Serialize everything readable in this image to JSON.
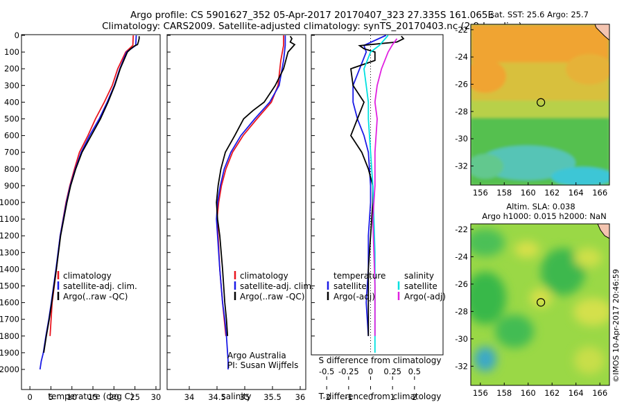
{
  "header": {
    "title_line1": "Argo profile: CS 5901627_352 05-Apr-2017 20170407_323 27.335S 161.065E",
    "title_line2": "Climatology: CARS2009. Satellite-adjusted climatology: synTS_20170403.nc (2.9d earlier)"
  },
  "side_text": "©IMOS 10-Apr-2017 20:46:59",
  "colors": {
    "climatology": "#e8141e",
    "satellite": "#1a1ae6",
    "argo": "#000000",
    "sat_salinity": "#00e0e0",
    "argo_salinity": "#e020e0"
  },
  "depth_ticks": [
    0,
    100,
    200,
    300,
    400,
    500,
    600,
    700,
    800,
    900,
    1000,
    1100,
    1200,
    1300,
    1400,
    1500,
    1600,
    1700,
    1800,
    1900,
    2000
  ],
  "chart_data": [
    {
      "type": "line",
      "xlabel": "temperature (deg C)",
      "xticks": [
        0,
        5,
        10,
        15,
        20,
        25,
        30
      ],
      "xlim": [
        -2,
        31
      ],
      "ylim": [
        0,
        2000
      ],
      "legend": [
        "climatology",
        "satellite-adj. clim.",
        "Argo(..raw -QC)"
      ],
      "series": [
        {
          "name": "climatology",
          "color": "#e8141e",
          "x": [
            24.6,
            24.5,
            22.8,
            20.9,
            19.6,
            17.7,
            15.6,
            13.8,
            11.8,
            10.6,
            9.5,
            8.6,
            7.2,
            6.3,
            5.3,
            4.8
          ],
          "y": [
            0,
            60,
            100,
            200,
            300,
            400,
            500,
            600,
            700,
            800,
            900,
            1000,
            1200,
            1400,
            1600,
            1800
          ]
        },
        {
          "name": "satellite-adj. clim.",
          "color": "#1a1ae6",
          "x": [
            25.3,
            25.2,
            23,
            21.4,
            20.1,
            18.4,
            16.5,
            14.2,
            12.2,
            10.8,
            9.6,
            8.7,
            7.2,
            6.2,
            5.1,
            4.5,
            3.8,
            3.2,
            2.7,
            2.4
          ],
          "y": [
            0,
            60,
            100,
            200,
            300,
            400,
            500,
            600,
            700,
            800,
            900,
            1000,
            1200,
            1400,
            1600,
            1700,
            1800,
            1900,
            1950,
            2000
          ]
        },
        {
          "name": "Argo(..raw -QC)",
          "color": "#000000",
          "x": [
            26,
            26,
            25.8,
            25.6,
            25,
            24,
            23.2,
            21.5,
            20.2,
            18.6,
            16.8,
            14.6,
            12.4,
            10.9,
            9.7,
            8.8,
            7.3,
            6.3,
            5.2,
            4.6,
            3.9,
            3.3
          ],
          "y": [
            5,
            20,
            40,
            55,
            62,
            80,
            100,
            200,
            300,
            400,
            500,
            600,
            700,
            800,
            900,
            1000,
            1200,
            1400,
            1600,
            1700,
            1800,
            1900
          ]
        }
      ]
    },
    {
      "type": "line",
      "xlabel": "salinity",
      "xticks": [
        34,
        34.5,
        35,
        35.5,
        36
      ],
      "xlim": [
        33.6,
        36.1
      ],
      "ylim": [
        0,
        2000
      ],
      "legend": [
        "climatology",
        "satellite-adj. clim.",
        "Argo(..raw -QC)"
      ],
      "annotation": [
        "Argo Australia",
        "PI: Susan Wijffels"
      ],
      "series": [
        {
          "name": "climatology",
          "color": "#e8141e",
          "x": [
            35.7,
            35.7,
            35.65,
            35.6,
            35.48,
            35.22,
            34.97,
            34.78,
            34.66,
            34.58,
            34.53,
            34.5,
            34.52,
            34.55,
            34.6,
            34.63,
            34.66
          ],
          "y": [
            0,
            60,
            150,
            300,
            400,
            500,
            600,
            700,
            800,
            900,
            1000,
            1100,
            1200,
            1400,
            1600,
            1700,
            1800
          ]
        },
        {
          "name": "satellite-adj. clim.",
          "color": "#1a1ae6",
          "x": [
            35.73,
            35.73,
            35.7,
            35.62,
            35.45,
            35.18,
            34.93,
            34.75,
            34.63,
            34.56,
            34.51,
            34.49,
            34.51,
            34.55,
            34.6,
            34.64,
            34.67,
            34.69,
            34.7,
            34.7
          ],
          "y": [
            0,
            60,
            150,
            300,
            400,
            500,
            600,
            700,
            800,
            900,
            1000,
            1100,
            1200,
            1400,
            1600,
            1700,
            1800,
            1900,
            1950,
            2000
          ]
        },
        {
          "name": "Argo(..raw -QC)",
          "color": "#000000",
          "x": [
            35.82,
            35.85,
            35.82,
            35.9,
            35.86,
            35.78,
            35.7,
            35.55,
            35.35,
            35.15,
            34.98,
            34.82,
            34.65,
            34.57,
            34.52,
            34.49,
            34.51,
            34.55,
            34.6,
            34.64,
            34.67,
            34.69
          ],
          "y": [
            5,
            20,
            40,
            55,
            70,
            100,
            200,
            300,
            400,
            450,
            500,
            600,
            700,
            800,
            900,
            1000,
            1100,
            1200,
            1400,
            1600,
            1700,
            1800
          ]
        }
      ]
    },
    {
      "type": "line",
      "xlabel": "T difference from climatology",
      "xticks": [
        -2,
        -1,
        0,
        1,
        2
      ],
      "xlim": [
        -2.7,
        3.3
      ],
      "ylim": [
        0,
        2000
      ],
      "top_label": "S difference from climatology",
      "top_ticks": [
        {
          "label": "-0.5",
          "t": -2
        },
        {
          "label": "-0.25",
          "t": -1
        },
        {
          "label": "0",
          "t": 0
        },
        {
          "label": "0.25",
          "t": 1
        },
        {
          "label": "0.5",
          "t": 2
        }
      ],
      "legend_temperature": {
        "heading": "temperature",
        "items": [
          "satellite",
          "Argo(-adj)"
        ]
      },
      "legend_salinity": {
        "heading": "salinity",
        "items": [
          "satellite",
          "Argo(-adj)"
        ]
      },
      "series": [
        {
          "name": "temperature satellite",
          "color": "#1a1ae6",
          "x": [
            0.7,
            -0.3,
            -0.2,
            -0.5,
            -0.8,
            -0.8,
            -0.6,
            -0.3,
            -0.1,
            -0.05,
            0,
            0,
            -0.1,
            -0.1,
            -0.2,
            -0.1
          ],
          "y": [
            0,
            60,
            100,
            200,
            300,
            400,
            500,
            600,
            700,
            800,
            900,
            1000,
            1200,
            1400,
            1600,
            1800
          ]
        },
        {
          "name": "temperature Argo(-adj)",
          "color": "#000000",
          "x": [
            1.4,
            1.5,
            1.2,
            0,
            -0.5,
            -0.3,
            0.2,
            0.2,
            -0.9,
            -0.8,
            -0.3,
            -0.6,
            -0.9,
            -0.4,
            -0.1,
            0.1,
            0.1,
            0,
            -0.1,
            -0.1,
            -0.1,
            -0.1
          ],
          "y": [
            5,
            20,
            40,
            55,
            62,
            80,
            100,
            150,
            200,
            300,
            400,
            500,
            600,
            700,
            800,
            900,
            1000,
            1200,
            1400,
            1600,
            1700,
            1800
          ]
        },
        {
          "name": "salinity satellite",
          "color": "#00e0e0",
          "x": [
            0.8,
            0.4,
            0,
            -0.3,
            -0.2,
            -0.1,
            -0.1,
            0,
            0.1,
            0.15,
            0.2,
            0.2,
            0.2,
            0.2
          ],
          "y": [
            0,
            60,
            100,
            200,
            300,
            400,
            500,
            700,
            900,
            1100,
            1300,
            1500,
            1700,
            1900
          ]
        },
        {
          "name": "salinity Argo(-adj)",
          "color": "#e020e0",
          "x": [
            1.2,
            1,
            0.8,
            0.5,
            0.3,
            0.2,
            0.3,
            0.2,
            0.2,
            0.1,
            0.15,
            0.2,
            0.2,
            0.2
          ],
          "y": [
            20,
            55,
            100,
            200,
            300,
            400,
            500,
            700,
            900,
            1100,
            1300,
            1500,
            1700,
            1800
          ]
        }
      ]
    },
    {
      "type": "heatmap",
      "title": "sat. SST: 25.6  Argo: 25.7",
      "xticks": [
        156,
        158,
        160,
        162,
        164,
        166
      ],
      "yticks": [
        -22,
        -24,
        -26,
        -28,
        -30,
        -32
      ],
      "xlim": [
        155.2,
        166.8
      ],
      "ylim": [
        -33.4,
        -21.6
      ],
      "argo_position": [
        161.065,
        -27.335
      ]
    },
    {
      "type": "heatmap",
      "title_line1": "Altim. SLA: 0.038",
      "title_line2": "Argo h1000: 0.015 h2000: NaN",
      "xticks": [
        156,
        158,
        160,
        162,
        164,
        166
      ],
      "yticks": [
        -22,
        -24,
        -26,
        -28,
        -30,
        -32
      ],
      "xlim": [
        155.2,
        166.8
      ],
      "ylim": [
        -33.4,
        -21.6
      ],
      "argo_position": [
        161.065,
        -27.335
      ]
    }
  ]
}
